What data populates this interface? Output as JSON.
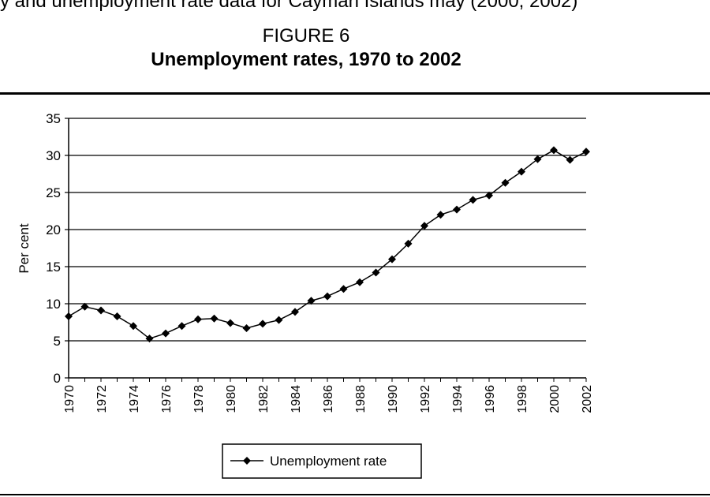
{
  "header": {
    "top_text": "y and unemployment rate data for Cayman Islands may (2000, 2002)",
    "figure_label": "FIGURE 6",
    "figure_title": "Unemployment rates, 1970 to 2002"
  },
  "colors": {
    "line": "#000000",
    "grid": "#000000"
  },
  "chart_data": {
    "type": "line",
    "title": "Unemployment rates, 1970 to 2002",
    "xlabel": "",
    "ylabel": "Per cent",
    "x": [
      1970,
      1971,
      1972,
      1973,
      1974,
      1975,
      1976,
      1977,
      1978,
      1979,
      1980,
      1981,
      1982,
      1983,
      1984,
      1985,
      1986,
      1987,
      1988,
      1989,
      1990,
      1991,
      1992,
      1993,
      1994,
      1995,
      1996,
      1997,
      1998,
      1999,
      2000,
      2001,
      2002
    ],
    "x_ticks": [
      "1970",
      "1972",
      "1974",
      "1976",
      "1978",
      "1980",
      "1982",
      "1984",
      "1986",
      "1988",
      "1990",
      "1992",
      "1994",
      "1996",
      "1998",
      "2000",
      "2002"
    ],
    "y_ticks": [
      "0",
      "5",
      "10",
      "15",
      "20",
      "25",
      "30",
      "35"
    ],
    "ylim": [
      0,
      35
    ],
    "grid": "horizontal",
    "legend_position": "bottom-center",
    "series": [
      {
        "name": "Unemployment rate",
        "values": [
          8.3,
          9.6,
          9.1,
          8.3,
          7.0,
          5.3,
          6.0,
          7.0,
          7.9,
          8.0,
          7.4,
          6.7,
          7.3,
          7.8,
          8.9,
          10.4,
          11.0,
          12.0,
          12.9,
          14.2,
          16.0,
          18.1,
          20.5,
          22.0,
          22.7,
          24.0,
          24.6,
          26.3,
          27.8,
          29.5,
          30.7,
          29.4,
          30.5
        ]
      }
    ]
  }
}
